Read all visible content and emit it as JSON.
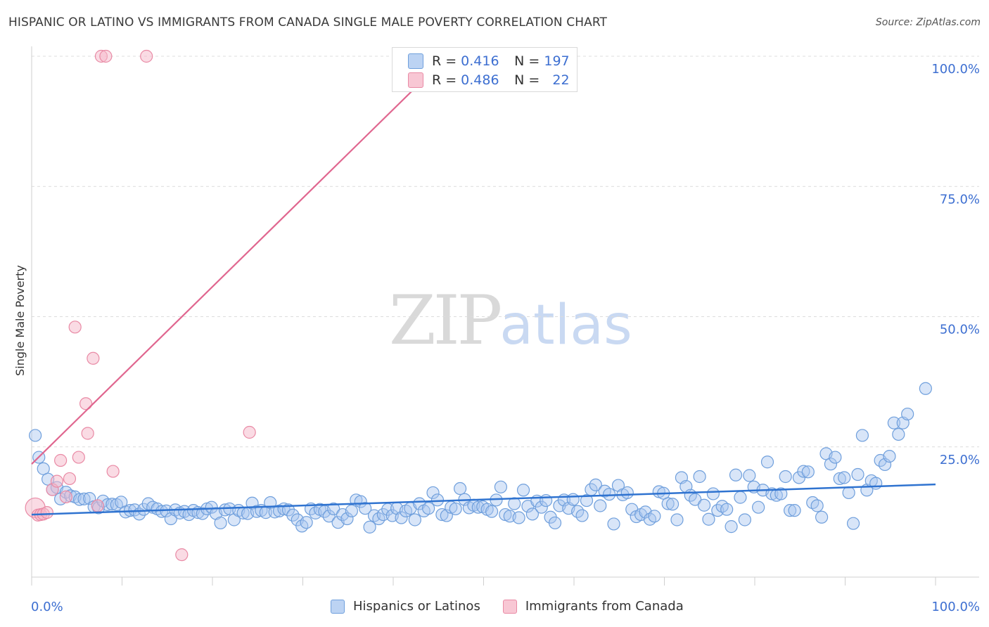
{
  "title": "HISPANIC OR LATINO VS IMMIGRANTS FROM CANADA SINGLE MALE POVERTY CORRELATION CHART",
  "source": "Source: ZipAtlas.com",
  "watermark": {
    "zip": "ZIP",
    "atlas": "atlas"
  },
  "legend": {
    "rows": [
      {
        "r_label": "R =",
        "r_value": "0.416",
        "n_label": "N =",
        "n_value": "197"
      },
      {
        "r_label": "R =",
        "r_value": "0.486",
        "n_label": "N =",
        "n_value": "22"
      }
    ]
  },
  "bottom_legend": {
    "series1": "Hispanics or Latinos",
    "series2": "Immigrants from Canada"
  },
  "colors": {
    "blue_fill": "#a9c6ef",
    "blue_stroke": "#6f9fdc",
    "blue_line": "#2f73d0",
    "pink_fill": "#f6b8c9",
    "pink_stroke": "#e98aa5",
    "pink_line": "#e0668f",
    "axis_text": "#3d6fd1"
  },
  "chart_data": {
    "type": "scatter",
    "title": "HISPANIC OR LATINO VS IMMIGRANTS FROM CANADA SINGLE MALE POVERTY CORRELATION CHART",
    "xlabel": "",
    "ylabel": "Single Male Poverty",
    "xlim": [
      0,
      100
    ],
    "ylim": [
      0,
      100
    ],
    "x_tick_labels": [
      "0.0%",
      "100.0%"
    ],
    "y_tick_labels": [
      "25.0%",
      "50.0%",
      "75.0%",
      "100.0%"
    ],
    "y_ticks": [
      25,
      50,
      75,
      100
    ],
    "grid": true,
    "series": [
      {
        "name": "Hispanics or Latinos",
        "R": 0.416,
        "N": 197,
        "trend": {
          "x": [
            0,
            100
          ],
          "y": [
            12.0,
            17.8
          ]
        },
        "points": [
          [
            0.4,
            27.2
          ],
          [
            0.8,
            23.0
          ],
          [
            1.3,
            20.8
          ],
          [
            1.8,
            18.8
          ],
          [
            2.3,
            16.8
          ],
          [
            2.8,
            17.2
          ],
          [
            3.2,
            15.0
          ],
          [
            3.8,
            16.3
          ],
          [
            4.3,
            15.6
          ],
          [
            4.8,
            15.4
          ],
          [
            5.3,
            14.9
          ],
          [
            5.8,
            15.0
          ],
          [
            6.4,
            15.1
          ],
          [
            6.9,
            13.5
          ],
          [
            7.4,
            13.3
          ],
          [
            7.9,
            14.6
          ],
          [
            8.4,
            13.9
          ],
          [
            8.9,
            14.0
          ],
          [
            9.4,
            13.9
          ],
          [
            9.9,
            14.4
          ],
          [
            10.4,
            12.5
          ],
          [
            10.9,
            12.8
          ],
          [
            11.4,
            12.9
          ],
          [
            11.9,
            12.1
          ],
          [
            12.4,
            13.0
          ],
          [
            12.9,
            14.1
          ],
          [
            13.4,
            13.4
          ],
          [
            13.9,
            13.1
          ],
          [
            14.4,
            12.6
          ],
          [
            14.9,
            12.7
          ],
          [
            15.4,
            11.2
          ],
          [
            15.9,
            12.9
          ],
          [
            16.4,
            12.3
          ],
          [
            16.9,
            12.6
          ],
          [
            17.4,
            12.0
          ],
          [
            17.9,
            12.8
          ],
          [
            18.4,
            12.4
          ],
          [
            18.9,
            12.2
          ],
          [
            19.4,
            13.1
          ],
          [
            19.9,
            13.4
          ],
          [
            20.4,
            12.2
          ],
          [
            20.9,
            10.4
          ],
          [
            21.4,
            12.9
          ],
          [
            21.9,
            13.1
          ],
          [
            22.4,
            11.0
          ],
          [
            22.9,
            12.8
          ],
          [
            23.4,
            12.3
          ],
          [
            23.9,
            12.2
          ],
          [
            24.4,
            14.2
          ],
          [
            24.9,
            12.6
          ],
          [
            25.4,
            12.8
          ],
          [
            25.9,
            12.4
          ],
          [
            26.4,
            14.3
          ],
          [
            26.9,
            12.5
          ],
          [
            27.4,
            12.7
          ],
          [
            27.9,
            13.1
          ],
          [
            28.4,
            12.9
          ],
          [
            28.9,
            11.9
          ],
          [
            29.4,
            11.0
          ],
          [
            29.9,
            9.8
          ],
          [
            30.4,
            10.5
          ],
          [
            30.9,
            13.1
          ],
          [
            31.4,
            12.3
          ],
          [
            31.9,
            13.0
          ],
          [
            32.4,
            12.6
          ],
          [
            32.9,
            11.7
          ],
          [
            33.4,
            13.1
          ],
          [
            33.9,
            10.5
          ],
          [
            34.4,
            12.0
          ],
          [
            34.9,
            11.2
          ],
          [
            35.4,
            12.7
          ],
          [
            35.9,
            14.8
          ],
          [
            36.4,
            14.5
          ],
          [
            36.9,
            13.2
          ],
          [
            37.4,
            9.6
          ],
          [
            37.9,
            11.8
          ],
          [
            38.4,
            11.2
          ],
          [
            38.9,
            12.0
          ],
          [
            39.4,
            13.0
          ],
          [
            39.9,
            11.8
          ],
          [
            40.4,
            13.2
          ],
          [
            40.9,
            11.4
          ],
          [
            41.4,
            12.7
          ],
          [
            41.9,
            13.2
          ],
          [
            42.4,
            11.0
          ],
          [
            42.9,
            14.1
          ],
          [
            43.4,
            12.7
          ],
          [
            43.9,
            13.2
          ],
          [
            44.4,
            16.2
          ],
          [
            44.9,
            14.8
          ],
          [
            45.4,
            12.0
          ],
          [
            45.9,
            11.8
          ],
          [
            46.4,
            13.4
          ],
          [
            46.9,
            13.1
          ],
          [
            47.4,
            17.0
          ],
          [
            47.9,
            14.9
          ],
          [
            48.4,
            13.3
          ],
          [
            48.9,
            13.8
          ],
          [
            49.4,
            13.4
          ],
          [
            49.9,
            13.5
          ],
          [
            50.4,
            13.0
          ],
          [
            50.9,
            12.6
          ],
          [
            51.4,
            14.8
          ],
          [
            51.9,
            17.3
          ],
          [
            52.4,
            12.0
          ],
          [
            52.9,
            11.7
          ],
          [
            53.4,
            14.1
          ],
          [
            53.9,
            11.4
          ],
          [
            54.4,
            16.7
          ],
          [
            54.9,
            13.6
          ],
          [
            55.4,
            12.1
          ],
          [
            55.9,
            14.6
          ],
          [
            56.4,
            13.4
          ],
          [
            56.9,
            14.7
          ],
          [
            57.4,
            11.5
          ],
          [
            57.9,
            10.4
          ],
          [
            58.4,
            13.7
          ],
          [
            58.9,
            14.8
          ],
          [
            59.4,
            13.2
          ],
          [
            59.9,
            14.9
          ],
          [
            60.4,
            12.6
          ],
          [
            60.9,
            11.8
          ],
          [
            61.4,
            14.7
          ],
          [
            61.9,
            16.8
          ],
          [
            62.4,
            17.7
          ],
          [
            62.9,
            13.7
          ],
          [
            63.4,
            16.5
          ],
          [
            63.9,
            15.9
          ],
          [
            64.4,
            10.2
          ],
          [
            64.9,
            17.6
          ],
          [
            65.4,
            15.8
          ],
          [
            65.9,
            16.2
          ],
          [
            66.4,
            13.0
          ],
          [
            66.9,
            11.6
          ],
          [
            67.4,
            12.0
          ],
          [
            67.9,
            12.5
          ],
          [
            68.4,
            11.1
          ],
          [
            68.9,
            11.7
          ],
          [
            69.4,
            16.4
          ],
          [
            69.9,
            16.1
          ],
          [
            70.4,
            14.1
          ],
          [
            70.9,
            14.0
          ],
          [
            71.4,
            11.0
          ],
          [
            71.9,
            19.1
          ],
          [
            72.4,
            17.4
          ],
          [
            72.9,
            15.7
          ],
          [
            73.4,
            14.9
          ],
          [
            73.9,
            19.3
          ],
          [
            74.4,
            13.8
          ],
          [
            74.9,
            11.1
          ],
          [
            75.4,
            16.0
          ],
          [
            75.9,
            12.8
          ],
          [
            76.4,
            13.6
          ],
          [
            76.9,
            13.0
          ],
          [
            77.4,
            9.7
          ],
          [
            77.9,
            19.6
          ],
          [
            78.4,
            15.3
          ],
          [
            78.9,
            11.0
          ],
          [
            79.4,
            19.5
          ],
          [
            79.9,
            17.3
          ],
          [
            80.4,
            13.4
          ],
          [
            80.9,
            16.7
          ],
          [
            81.4,
            22.1
          ],
          [
            81.9,
            16.0
          ],
          [
            82.4,
            15.7
          ],
          [
            82.9,
            16.0
          ],
          [
            83.4,
            19.3
          ],
          [
            83.9,
            12.8
          ],
          [
            84.4,
            12.8
          ],
          [
            84.9,
            19.1
          ],
          [
            85.4,
            20.3
          ],
          [
            85.9,
            20.2
          ],
          [
            86.4,
            14.3
          ],
          [
            86.9,
            13.7
          ],
          [
            87.4,
            11.5
          ],
          [
            87.9,
            23.7
          ],
          [
            88.4,
            21.7
          ],
          [
            88.9,
            23.0
          ],
          [
            89.4,
            18.9
          ],
          [
            89.9,
            19.1
          ],
          [
            90.4,
            16.2
          ],
          [
            90.9,
            10.3
          ],
          [
            91.4,
            19.7
          ],
          [
            91.9,
            27.2
          ],
          [
            92.4,
            16.7
          ],
          [
            92.9,
            18.5
          ],
          [
            93.4,
            18.0
          ],
          [
            93.9,
            22.4
          ],
          [
            94.4,
            21.6
          ],
          [
            94.9,
            23.2
          ],
          [
            95.4,
            29.6
          ],
          [
            95.9,
            27.4
          ],
          [
            96.4,
            29.6
          ],
          [
            96.9,
            31.3
          ],
          [
            98.9,
            36.2
          ]
        ]
      },
      {
        "name": "Immigrants from Canada",
        "R": 0.486,
        "N": 22,
        "trend": {
          "x": [
            0,
            46
          ],
          "y": [
            21.7,
            100
          ]
        },
        "points": [
          [
            0.4,
            13.3
          ],
          [
            0.7,
            11.9
          ],
          [
            1.0,
            12.0
          ],
          [
            1.3,
            12.1
          ],
          [
            1.7,
            12.4
          ],
          [
            2.3,
            16.8
          ],
          [
            2.8,
            18.4
          ],
          [
            3.2,
            22.4
          ],
          [
            3.8,
            15.4
          ],
          [
            4.2,
            18.9
          ],
          [
            4.8,
            48.0
          ],
          [
            5.2,
            23.0
          ],
          [
            6.0,
            33.3
          ],
          [
            6.2,
            27.6
          ],
          [
            6.8,
            42.0
          ],
          [
            7.3,
            13.7
          ],
          [
            7.7,
            100.0
          ],
          [
            8.2,
            100.0
          ],
          [
            9.0,
            20.3
          ],
          [
            12.7,
            100.0
          ],
          [
            16.6,
            4.3
          ],
          [
            24.1,
            27.8
          ]
        ]
      }
    ]
  }
}
